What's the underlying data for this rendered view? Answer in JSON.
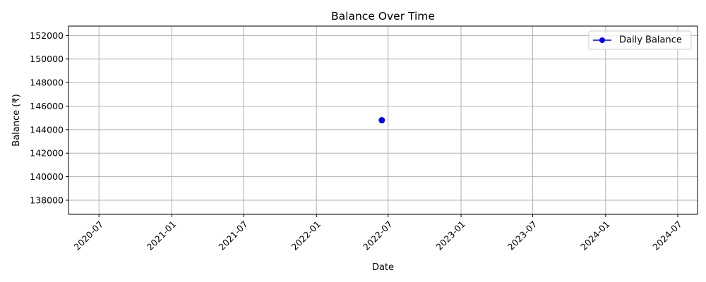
{
  "chart_data": {
    "type": "line",
    "title": "Balance Over Time",
    "xlabel": "Date",
    "ylabel": "Balance (₹)",
    "x_axis_type": "date",
    "xlim": [
      "2020-04-15",
      "2024-08-20"
    ],
    "ylim": [
      136800,
      152800
    ],
    "x_ticks": [
      "2020-07",
      "2021-01",
      "2021-07",
      "2022-01",
      "2022-07",
      "2023-01",
      "2023-07",
      "2024-01",
      "2024-07"
    ],
    "y_ticks": [
      138000,
      140000,
      142000,
      144000,
      146000,
      148000,
      150000,
      152000
    ],
    "grid": true,
    "legend_position": "top-right",
    "series": [
      {
        "name": "Daily Balance",
        "color": "#0000ff",
        "marker": "circle",
        "points": [
          {
            "x": "2022-06-15",
            "y": 144800
          }
        ]
      }
    ]
  }
}
